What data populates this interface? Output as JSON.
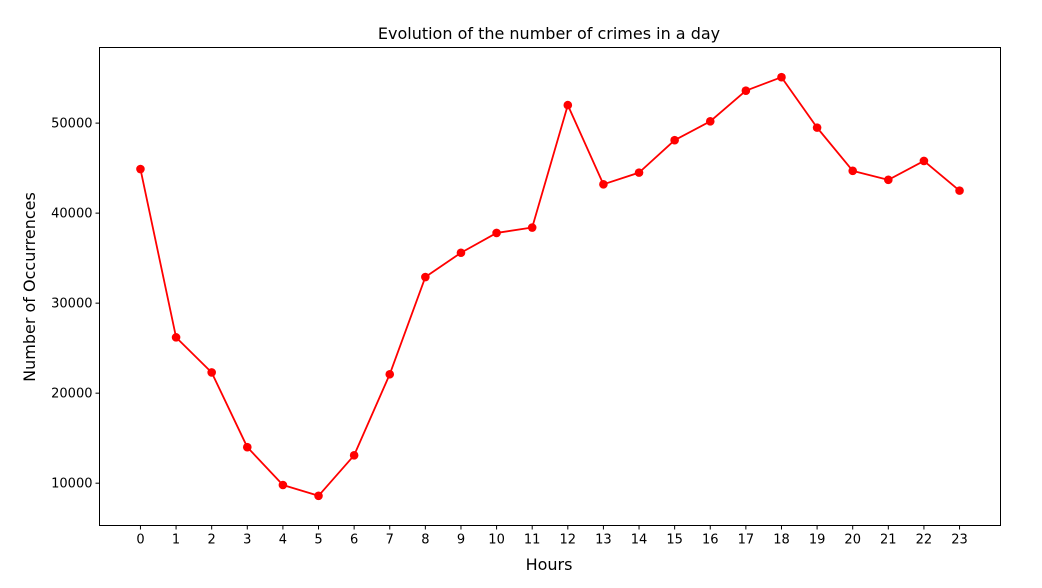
{
  "chart_data": {
    "type": "line",
    "title": "Evolution of the number of crimes in a day",
    "xlabel": "Hours",
    "ylabel": "Number of Occurrences",
    "x": [
      0,
      1,
      2,
      3,
      4,
      5,
      6,
      7,
      8,
      9,
      10,
      11,
      12,
      13,
      14,
      15,
      16,
      17,
      18,
      19,
      20,
      21,
      22,
      23
    ],
    "x_tick_labels": [
      "0",
      "1",
      "2",
      "3",
      "4",
      "5",
      "6",
      "7",
      "8",
      "9",
      "10",
      "11",
      "12",
      "13",
      "14",
      "15",
      "16",
      "17",
      "18",
      "19",
      "20",
      "21",
      "22",
      "23"
    ],
    "series": [
      {
        "values": [
          44900,
          26200,
          22300,
          14000,
          9800,
          8600,
          13100,
          22100,
          32900,
          35600,
          37800,
          38400,
          52000,
          43200,
          44500,
          48100,
          50200,
          53600,
          55100,
          49500,
          44700,
          43700,
          45800,
          42500
        ]
      }
    ],
    "y_ticks": [
      10000,
      20000,
      30000,
      40000,
      50000
    ],
    "y_tick_labels": [
      "10000",
      "20000",
      "30000",
      "40000",
      "50000"
    ],
    "xlim": [
      -1.15,
      24.15
    ],
    "ylim": [
      5300,
      58400
    ],
    "grid": false,
    "line_color": "#ff0000",
    "marker": "circle"
  }
}
